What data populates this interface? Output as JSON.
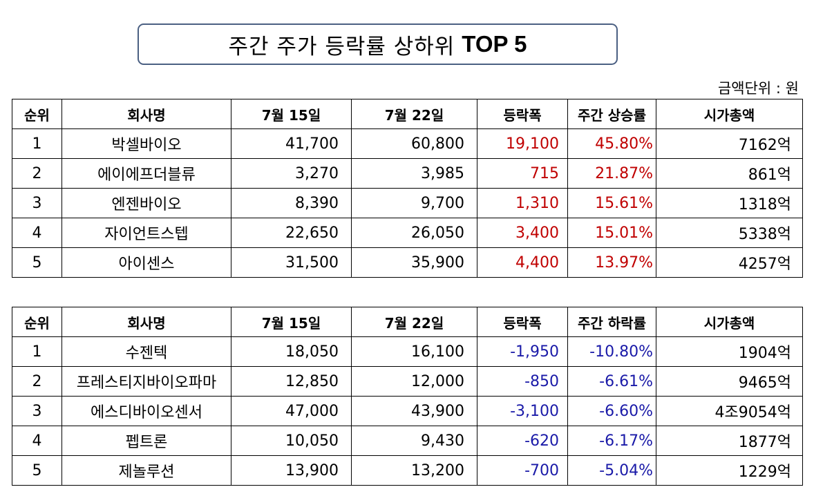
{
  "title": {
    "text": "주간 주가 등락률 상하위",
    "bold": "TOP 5"
  },
  "unit_label": "금액단위 : 원",
  "colors": {
    "up": "#c00000",
    "down": "#1a1aa8",
    "title_border": "#4a5f82"
  },
  "top": {
    "headers": [
      "순위",
      "회사명",
      "7월 15일",
      "7월 22일",
      "등락폭",
      "주간 상승률",
      "시가총액"
    ],
    "rows": [
      {
        "rank": "1",
        "name": "박셀바이오",
        "d15": "41,700",
        "d22": "60,800",
        "change": "19,100",
        "rate": "45.80%",
        "cap": "7162억"
      },
      {
        "rank": "2",
        "name": "에이에프더블류",
        "d15": "3,270",
        "d22": "3,985",
        "change": "715",
        "rate": "21.87%",
        "cap": "861억"
      },
      {
        "rank": "3",
        "name": "엔젠바이오",
        "d15": "8,390",
        "d22": "9,700",
        "change": "1,310",
        "rate": "15.61%",
        "cap": "1318억"
      },
      {
        "rank": "4",
        "name": "자이언트스텝",
        "d15": "22,650",
        "d22": "26,050",
        "change": "3,400",
        "rate": "15.01%",
        "cap": "5338억"
      },
      {
        "rank": "5",
        "name": "아이센스",
        "d15": "31,500",
        "d22": "35,900",
        "change": "4,400",
        "rate": "13.97%",
        "cap": "4257억"
      }
    ]
  },
  "bottom": {
    "headers": [
      "순위",
      "회사명",
      "7월 15일",
      "7월 22일",
      "등락폭",
      "주간 하락률",
      "시가총액"
    ],
    "rows": [
      {
        "rank": "1",
        "name": "수젠텍",
        "d15": "18,050",
        "d22": "16,100",
        "change": "-1,950",
        "rate": "-10.80%",
        "cap": "1904억"
      },
      {
        "rank": "2",
        "name": "프레스티지바이오파마",
        "d15": "12,850",
        "d22": "12,000",
        "change": "-850",
        "rate": "-6.61%",
        "cap": "9465억"
      },
      {
        "rank": "3",
        "name": "에스디바이오센서",
        "d15": "47,000",
        "d22": "43,900",
        "change": "-3,100",
        "rate": "-6.60%",
        "cap": "4조9054억"
      },
      {
        "rank": "4",
        "name": "펩트론",
        "d15": "10,050",
        "d22": "9,430",
        "change": "-620",
        "rate": "-6.17%",
        "cap": "1877억"
      },
      {
        "rank": "5",
        "name": "제놀루션",
        "d15": "13,900",
        "d22": "13,200",
        "change": "-700",
        "rate": "-5.04%",
        "cap": "1229억"
      }
    ]
  }
}
